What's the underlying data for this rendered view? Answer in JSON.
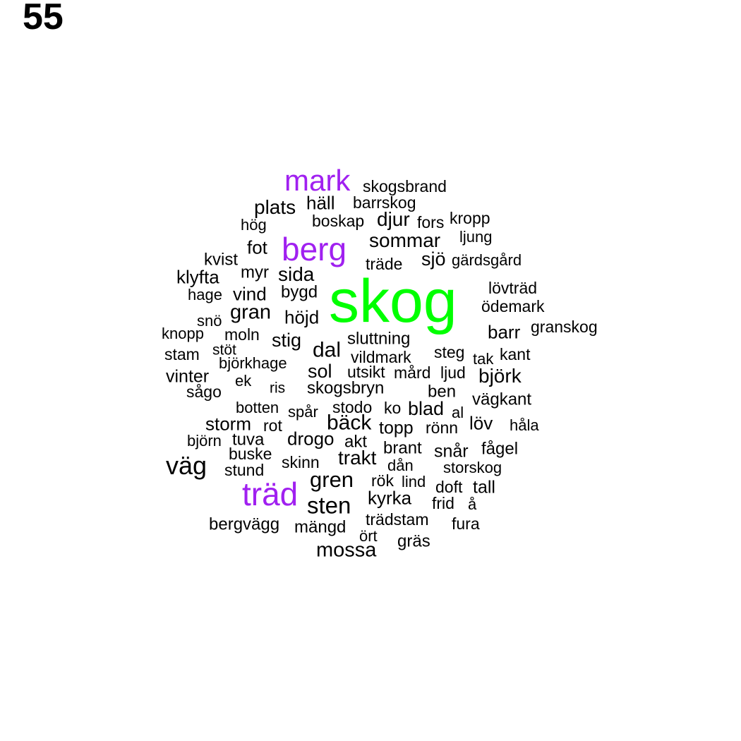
{
  "panel_number": "55",
  "colors": {
    "top": "#00ff00",
    "second": "#a020f0",
    "default": "#000000"
  },
  "words": [
    {
      "text": "skog",
      "color": "top"
    },
    {
      "text": "mark",
      "color": "second"
    },
    {
      "text": "berg",
      "color": "second"
    },
    {
      "text": "träd",
      "color": "second"
    },
    {
      "text": "skogsbrand"
    },
    {
      "text": "häll"
    },
    {
      "text": "barrskog"
    },
    {
      "text": "plats"
    },
    {
      "text": "boskap"
    },
    {
      "text": "djur"
    },
    {
      "text": "fors"
    },
    {
      "text": "kropp"
    },
    {
      "text": "hög"
    },
    {
      "text": "ljung"
    },
    {
      "text": "sommar"
    },
    {
      "text": "fot"
    },
    {
      "text": "kvist"
    },
    {
      "text": "sjö"
    },
    {
      "text": "gärdsgård"
    },
    {
      "text": "träde"
    },
    {
      "text": "myr"
    },
    {
      "text": "klyfta"
    },
    {
      "text": "sida"
    },
    {
      "text": "lövträd"
    },
    {
      "text": "hage"
    },
    {
      "text": "vind"
    },
    {
      "text": "bygd"
    },
    {
      "text": "ödemark"
    },
    {
      "text": "gran"
    },
    {
      "text": "snö"
    },
    {
      "text": "höjd"
    },
    {
      "text": "barr"
    },
    {
      "text": "granskog"
    },
    {
      "text": "knopp"
    },
    {
      "text": "moln"
    },
    {
      "text": "sluttning"
    },
    {
      "text": "stig"
    },
    {
      "text": "stam"
    },
    {
      "text": "stöt"
    },
    {
      "text": "dal"
    },
    {
      "text": "steg"
    },
    {
      "text": "kant"
    },
    {
      "text": "vildmark"
    },
    {
      "text": "tak"
    },
    {
      "text": "björkhage"
    },
    {
      "text": "sol"
    },
    {
      "text": "utsikt"
    },
    {
      "text": "mård"
    },
    {
      "text": "ljud"
    },
    {
      "text": "björk"
    },
    {
      "text": "vinter"
    },
    {
      "text": "ek"
    },
    {
      "text": "ris"
    },
    {
      "text": "skogsbryn"
    },
    {
      "text": "sågo"
    },
    {
      "text": "ben"
    },
    {
      "text": "vägkant"
    },
    {
      "text": "botten"
    },
    {
      "text": "spår"
    },
    {
      "text": "stodo"
    },
    {
      "text": "ko"
    },
    {
      "text": "blad"
    },
    {
      "text": "al"
    },
    {
      "text": "storm"
    },
    {
      "text": "rot"
    },
    {
      "text": "bäck"
    },
    {
      "text": "topp"
    },
    {
      "text": "rönn"
    },
    {
      "text": "löv"
    },
    {
      "text": "håla"
    },
    {
      "text": "björn"
    },
    {
      "text": "tuva"
    },
    {
      "text": "drogo"
    },
    {
      "text": "akt"
    },
    {
      "text": "brant"
    },
    {
      "text": "snår"
    },
    {
      "text": "fågel"
    },
    {
      "text": "buske"
    },
    {
      "text": "väg"
    },
    {
      "text": "trakt"
    },
    {
      "text": "skinn"
    },
    {
      "text": "dån"
    },
    {
      "text": "storskog"
    },
    {
      "text": "stund"
    },
    {
      "text": "gren"
    },
    {
      "text": "rök"
    },
    {
      "text": "lind"
    },
    {
      "text": "doft"
    },
    {
      "text": "tall"
    },
    {
      "text": "sten"
    },
    {
      "text": "kyrka"
    },
    {
      "text": "frid"
    },
    {
      "text": "å"
    },
    {
      "text": "trädstam"
    },
    {
      "text": "bergvägg"
    },
    {
      "text": "fura"
    },
    {
      "text": "mängd"
    },
    {
      "text": "ört"
    },
    {
      "text": "gräs"
    },
    {
      "text": "mossa"
    }
  ]
}
